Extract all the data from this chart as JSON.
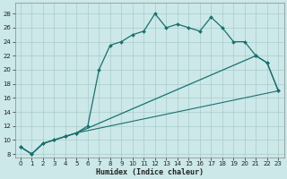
{
  "xlabel": "Humidex (Indice chaleur)",
  "bg_color": "#cce8e8",
  "grid_color": "#aacccc",
  "line_color": "#1a7070",
  "xlim": [
    -0.5,
    23.5
  ],
  "ylim": [
    7.5,
    29.5
  ],
  "yticks": [
    8,
    10,
    12,
    14,
    16,
    18,
    20,
    22,
    24,
    26,
    28
  ],
  "xticks": [
    0,
    1,
    2,
    3,
    4,
    5,
    6,
    7,
    8,
    9,
    10,
    11,
    12,
    13,
    14,
    15,
    16,
    17,
    18,
    19,
    20,
    21,
    22,
    23
  ],
  "line1_x": [
    0,
    1,
    2,
    3,
    4,
    5,
    6,
    7,
    8,
    9,
    10,
    11,
    12,
    13,
    14,
    15,
    16,
    17,
    18,
    19,
    20,
    21,
    22,
    23
  ],
  "line1_y": [
    9,
    8,
    9.5,
    10,
    10.5,
    11,
    12,
    20,
    23.5,
    24,
    25,
    25.5,
    28,
    26,
    26.5,
    26,
    25.5,
    27.5,
    26,
    24,
    24,
    22,
    21,
    17
  ],
  "line2_x": [
    0,
    1,
    2,
    3,
    4,
    5,
    21,
    22,
    23
  ],
  "line2_y": [
    9,
    8,
    9.5,
    10,
    10.5,
    11,
    22,
    21,
    17
  ],
  "line3_x": [
    0,
    1,
    2,
    3,
    4,
    5,
    23
  ],
  "line3_y": [
    9,
    8,
    9.5,
    10,
    10.5,
    11,
    17
  ]
}
